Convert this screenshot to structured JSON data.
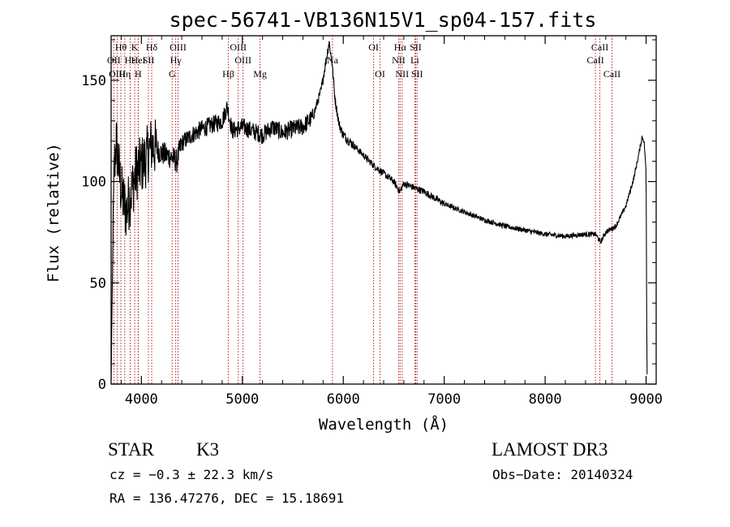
{
  "chart_data": {
    "type": "line",
    "title": "spec-56741-VB136N15V1_sp04-157.fits",
    "xlabel": "Wavelength (Å)",
    "ylabel": "Flux (relative)",
    "xlim": [
      3700,
      9100
    ],
    "ylim": [
      0,
      172
    ],
    "xticks": [
      4000,
      5000,
      6000,
      7000,
      8000,
      9000
    ],
    "yticks": [
      0,
      50,
      100,
      150
    ],
    "line_color": "#000000",
    "marker_color": "#b22222",
    "spectrum_anchors": [
      {
        "x": 3700,
        "y": 2
      },
      {
        "x": 3715,
        "y": 60
      },
      {
        "x": 3730,
        "y": 105
      },
      {
        "x": 3750,
        "y": 120
      },
      {
        "x": 3800,
        "y": 95
      },
      {
        "x": 3850,
        "y": 85
      },
      {
        "x": 3900,
        "y": 95
      },
      {
        "x": 3950,
        "y": 105
      },
      {
        "x": 4000,
        "y": 108
      },
      {
        "x": 4050,
        "y": 112
      },
      {
        "x": 4100,
        "y": 118
      },
      {
        "x": 4200,
        "y": 114
      },
      {
        "x": 4300,
        "y": 112
      },
      {
        "x": 4350,
        "y": 110
      },
      {
        "x": 4400,
        "y": 119
      },
      {
        "x": 4500,
        "y": 123
      },
      {
        "x": 4600,
        "y": 126
      },
      {
        "x": 4700,
        "y": 128
      },
      {
        "x": 4800,
        "y": 130
      },
      {
        "x": 4850,
        "y": 137
      },
      {
        "x": 4900,
        "y": 125
      },
      {
        "x": 5000,
        "y": 127
      },
      {
        "x": 5100,
        "y": 125
      },
      {
        "x": 5200,
        "y": 123
      },
      {
        "x": 5300,
        "y": 127
      },
      {
        "x": 5400,
        "y": 124
      },
      {
        "x": 5500,
        "y": 126
      },
      {
        "x": 5600,
        "y": 127
      },
      {
        "x": 5700,
        "y": 132
      },
      {
        "x": 5780,
        "y": 145
      },
      {
        "x": 5830,
        "y": 160
      },
      {
        "x": 5860,
        "y": 169
      },
      {
        "x": 5890,
        "y": 158
      },
      {
        "x": 5920,
        "y": 140
      },
      {
        "x": 5960,
        "y": 128
      },
      {
        "x": 6000,
        "y": 123
      },
      {
        "x": 6100,
        "y": 118
      },
      {
        "x": 6200,
        "y": 113
      },
      {
        "x": 6300,
        "y": 108
      },
      {
        "x": 6400,
        "y": 104
      },
      {
        "x": 6500,
        "y": 100
      },
      {
        "x": 6560,
        "y": 95
      },
      {
        "x": 6600,
        "y": 99
      },
      {
        "x": 6700,
        "y": 97
      },
      {
        "x": 6800,
        "y": 95
      },
      {
        "x": 6900,
        "y": 92
      },
      {
        "x": 7000,
        "y": 89
      },
      {
        "x": 7200,
        "y": 85
      },
      {
        "x": 7400,
        "y": 81
      },
      {
        "x": 7600,
        "y": 78
      },
      {
        "x": 7800,
        "y": 76
      },
      {
        "x": 8000,
        "y": 74
      },
      {
        "x": 8200,
        "y": 73
      },
      {
        "x": 8400,
        "y": 74
      },
      {
        "x": 8500,
        "y": 74
      },
      {
        "x": 8550,
        "y": 70
      },
      {
        "x": 8600,
        "y": 75
      },
      {
        "x": 8700,
        "y": 78
      },
      {
        "x": 8800,
        "y": 88
      },
      {
        "x": 8880,
        "y": 102
      },
      {
        "x": 8930,
        "y": 114
      },
      {
        "x": 8960,
        "y": 122
      },
      {
        "x": 8980,
        "y": 120
      },
      {
        "x": 9000,
        "y": 105
      },
      {
        "x": 9005,
        "y": 40
      },
      {
        "x": 9010,
        "y": 5
      }
    ],
    "line_markers": [
      {
        "label": "Hθ",
        "wavelength": 3797,
        "row": 1
      },
      {
        "label": "OII",
        "wavelength": 3727,
        "row": 2
      },
      {
        "label": "OIII",
        "wavelength": 3760,
        "row": 3
      },
      {
        "label": "Hε",
        "wavelength": 3889,
        "row": 2
      },
      {
        "label": "Hη",
        "wavelength": 3835,
        "row": 3
      },
      {
        "label": "K",
        "wavelength": 3934,
        "row": 1
      },
      {
        "label": "HeI",
        "wavelength": 3970,
        "row": 2
      },
      {
        "label": "SII",
        "wavelength": 4070,
        "row": 2
      },
      {
        "label": "H",
        "wavelength": 3968,
        "row": 3
      },
      {
        "label": "Hδ",
        "wavelength": 4102,
        "row": 1
      },
      {
        "label": "OIII",
        "wavelength": 4363,
        "row": 1
      },
      {
        "label": "Hγ",
        "wavelength": 4340,
        "row": 2
      },
      {
        "label": "G",
        "wavelength": 4305,
        "row": 3
      },
      {
        "label": "OIII",
        "wavelength": 4959,
        "row": 1
      },
      {
        "label": "OIII",
        "wavelength": 5007,
        "row": 2
      },
      {
        "label": "Hβ",
        "wavelength": 4861,
        "row": 3
      },
      {
        "label": "Mg",
        "wavelength": 5175,
        "row": 3
      },
      {
        "label": "Na",
        "wavelength": 5893,
        "row": 2
      },
      {
        "label": "OI",
        "wavelength": 6300,
        "row": 1
      },
      {
        "label": "OI",
        "wavelength": 6364,
        "row": 3
      },
      {
        "label": "Hα",
        "wavelength": 6563,
        "row": 1
      },
      {
        "label": "SII",
        "wavelength": 6717,
        "row": 1
      },
      {
        "label": "NII",
        "wavelength": 6548,
        "row": 2
      },
      {
        "label": "Li",
        "wavelength": 6708,
        "row": 2
      },
      {
        "label": "NII",
        "wavelength": 6583,
        "row": 3
      },
      {
        "label": "SII",
        "wavelength": 6731,
        "row": 3
      },
      {
        "label": "CaII",
        "wavelength": 8542,
        "row": 1
      },
      {
        "label": "CaII",
        "wavelength": 8498,
        "row": 2
      },
      {
        "label": "CaII",
        "wavelength": 8662,
        "row": 3
      }
    ]
  },
  "info": {
    "class_label": "STAR",
    "subclass": "K3",
    "survey": "LAMOST DR3",
    "cz": "cz = −0.3 ± 22.3 km/s",
    "obs_date": "Obs−Date: 20140324",
    "coords": "RA = 136.47276, DEC =  15.18691"
  }
}
